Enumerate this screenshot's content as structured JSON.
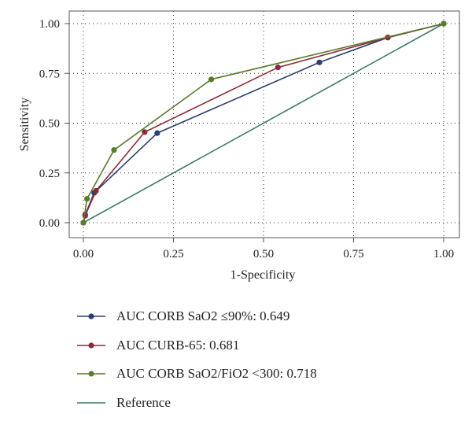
{
  "chart_data": {
    "type": "line",
    "xlabel": "1-Specificity",
    "ylabel": "Sensitivity",
    "xlim": [
      0,
      1
    ],
    "ylim": [
      0,
      1
    ],
    "xticks": [
      "0.00",
      "0.25",
      "0.50",
      "0.75",
      "1.00"
    ],
    "yticks": [
      "0.00",
      "0.25",
      "0.50",
      "0.75",
      "1.00"
    ],
    "grid": "dotted",
    "legend_position": "bottom",
    "series": [
      {
        "name": "AUC CORB SaO2 ≤90%: 0.649",
        "color": "#2b3f6e",
        "markers": true,
        "x": [
          0.0,
          0.005,
          0.03,
          0.205,
          0.655,
          0.845,
          1.0
        ],
        "y": [
          0.0,
          0.04,
          0.15,
          0.45,
          0.805,
          0.93,
          1.0
        ]
      },
      {
        "name": "AUC CURB-65: 0.681",
        "color": "#8b2a38",
        "markers": true,
        "x": [
          0.0,
          0.005,
          0.035,
          0.17,
          0.54,
          0.845,
          1.0
        ],
        "y": [
          0.0,
          0.035,
          0.16,
          0.455,
          0.78,
          0.93,
          1.0
        ]
      },
      {
        "name": "AUC CORB SaO2/FiO2 <300: 0.718",
        "color": "#5a7a2e",
        "markers": true,
        "x": [
          0.0,
          0.01,
          0.085,
          0.355,
          1.0
        ],
        "y": [
          0.0,
          0.12,
          0.365,
          0.72,
          1.0
        ]
      },
      {
        "name": "Reference",
        "color": "#3e7a6a",
        "markers": false,
        "x": [
          0,
          1
        ],
        "y": [
          0,
          1
        ]
      }
    ]
  }
}
